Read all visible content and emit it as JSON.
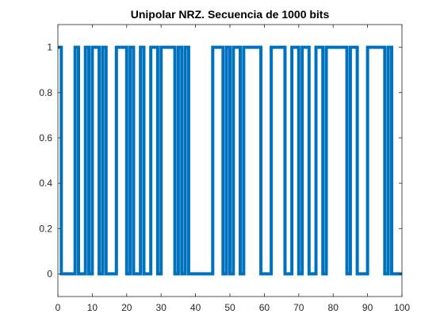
{
  "chart_data": {
    "type": "line",
    "title": "Unipolar NRZ. Secuencia de 1000 bits",
    "xlabel": "",
    "ylabel": "",
    "xlim": [
      0,
      100
    ],
    "ylim": [
      -0.1,
      1.1
    ],
    "xticks": [
      0,
      10,
      20,
      30,
      40,
      50,
      60,
      70,
      80,
      90,
      100
    ],
    "yticks": [
      0,
      0.2,
      0.4,
      0.6,
      0.8,
      1
    ],
    "grid": false,
    "line_color": "#0072BD",
    "series": [
      {
        "x": [
          0,
          1,
          1,
          5,
          5,
          6,
          6,
          8,
          8,
          9,
          9,
          10,
          10,
          12,
          12,
          13,
          13,
          14,
          14,
          17,
          17,
          20,
          20,
          21,
          21,
          22,
          22,
          24,
          24,
          25,
          25,
          27,
          27,
          29,
          29,
          30,
          30,
          34,
          34,
          35,
          35,
          36,
          36,
          37,
          37,
          38,
          38,
          45,
          45,
          48,
          48,
          49,
          49,
          50,
          50,
          51,
          51,
          53,
          53,
          54,
          54,
          59,
          59,
          62,
          62,
          66,
          66,
          68,
          68,
          70,
          70,
          71,
          71,
          73,
          73,
          75,
          75,
          77,
          77,
          78,
          78,
          84,
          84,
          85,
          85,
          87,
          87,
          90,
          90,
          95,
          95,
          96,
          96,
          97,
          97,
          100
        ],
        "y": [
          1,
          1,
          0,
          0,
          1,
          1,
          0,
          0,
          1,
          1,
          0,
          0,
          1,
          1,
          0,
          0,
          1,
          1,
          0,
          0,
          1,
          1,
          0,
          0,
          1,
          1,
          0,
          0,
          1,
          1,
          0,
          0,
          1,
          1,
          0,
          0,
          1,
          1,
          0,
          0,
          1,
          1,
          0,
          0,
          1,
          1,
          0,
          0,
          1,
          1,
          0,
          0,
          1,
          1,
          0,
          0,
          1,
          1,
          0,
          0,
          1,
          1,
          0,
          0,
          1,
          1,
          0,
          0,
          1,
          1,
          0,
          0,
          1,
          1,
          0,
          0,
          1,
          1,
          0,
          0,
          1,
          1,
          0,
          0,
          1,
          1,
          0,
          0,
          1,
          1,
          0,
          0,
          1,
          1,
          0,
          0
        ]
      }
    ]
  },
  "axes": {
    "x_tick_labels": [
      "0",
      "10",
      "20",
      "30",
      "40",
      "50",
      "60",
      "70",
      "80",
      "90",
      "100"
    ],
    "y_tick_labels": [
      "0",
      "0.2",
      "0.4",
      "0.6",
      "0.8",
      "1"
    ]
  },
  "colors": {
    "axis": "#262626",
    "background": "#ffffff",
    "line": "#0072BD"
  }
}
